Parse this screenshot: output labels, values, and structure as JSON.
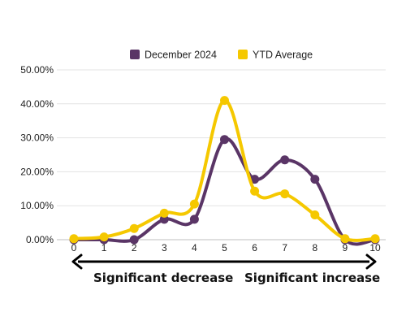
{
  "chart_data": {
    "type": "line",
    "x": [
      0,
      1,
      2,
      3,
      4,
      5,
      6,
      7,
      8,
      9,
      10
    ],
    "xticks": [
      "0",
      "1",
      "2",
      "3",
      "4",
      "5",
      "6",
      "7",
      "8",
      "9",
      "10"
    ],
    "yticks": [
      "0.00%",
      "10.00%",
      "20.00%",
      "30.00%",
      "40.00%",
      "50.00%"
    ],
    "ylim": [
      0,
      50
    ],
    "grid": true,
    "legend_position": "top",
    "series": [
      {
        "name": "December 2024",
        "color": "#5a3566",
        "values": [
          0.0,
          0.0,
          0.0,
          6.0,
          6.0,
          29.5,
          17.8,
          23.5,
          17.8,
          0.0,
          0.0
        ]
      },
      {
        "name": "YTD Average",
        "color": "#f5c800",
        "values": [
          0.3,
          0.8,
          3.3,
          7.8,
          10.5,
          41.0,
          14.3,
          13.5,
          7.3,
          0.3,
          0.3
        ]
      }
    ],
    "annotations": {
      "left": "Significant decrease",
      "right": "Significant increase"
    }
  }
}
